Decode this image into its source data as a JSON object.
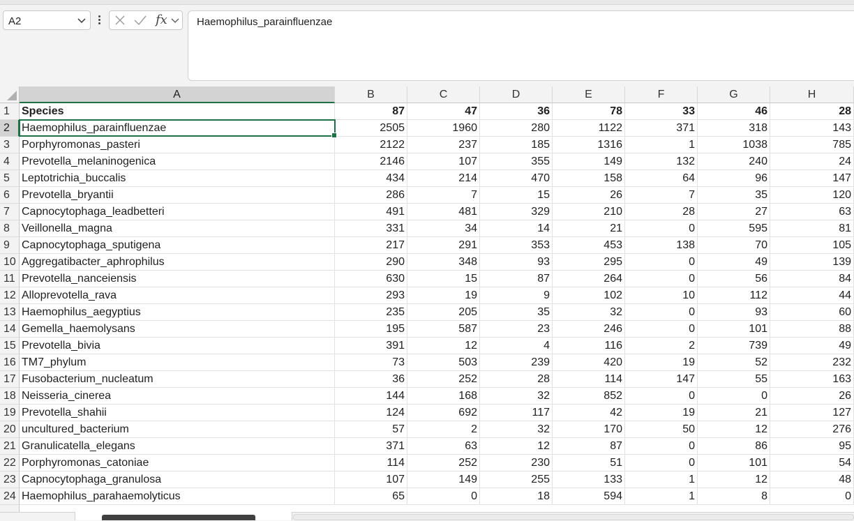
{
  "formula_bar": {
    "name_box": "A2",
    "formula": "Haemophilus_parainfluenzae"
  },
  "columns": [
    "A",
    "B",
    "C",
    "D",
    "E",
    "F",
    "G",
    "H"
  ],
  "rows": [
    {
      "n": "1",
      "cells": [
        "Species",
        "87",
        "47",
        "36",
        "78",
        "33",
        "46",
        "28"
      ]
    },
    {
      "n": "2",
      "cells": [
        "Haemophilus_parainfluenzae",
        "2505",
        "1960",
        "280",
        "1122",
        "371",
        "318",
        "143"
      ]
    },
    {
      "n": "3",
      "cells": [
        "Porphyromonas_pasteri",
        "2122",
        "237",
        "185",
        "1316",
        "1",
        "1038",
        "785"
      ]
    },
    {
      "n": "4",
      "cells": [
        "Prevotella_melaninogenica",
        "2146",
        "107",
        "355",
        "149",
        "132",
        "240",
        "24"
      ]
    },
    {
      "n": "5",
      "cells": [
        "Leptotrichia_buccalis",
        "434",
        "214",
        "470",
        "158",
        "64",
        "96",
        "147"
      ]
    },
    {
      "n": "6",
      "cells": [
        "Prevotella_bryantii",
        "286",
        "7",
        "15",
        "26",
        "7",
        "35",
        "120"
      ]
    },
    {
      "n": "7",
      "cells": [
        "Capnocytophaga_leadbetteri",
        "491",
        "481",
        "329",
        "210",
        "28",
        "27",
        "63"
      ]
    },
    {
      "n": "8",
      "cells": [
        "Veillonella_magna",
        "331",
        "34",
        "14",
        "21",
        "0",
        "595",
        "81"
      ]
    },
    {
      "n": "9",
      "cells": [
        "Capnocytophaga_sputigena",
        "217",
        "291",
        "353",
        "453",
        "138",
        "70",
        "105"
      ]
    },
    {
      "n": "10",
      "cells": [
        "Aggregatibacter_aphrophilus",
        "290",
        "348",
        "93",
        "295",
        "0",
        "49",
        "139"
      ]
    },
    {
      "n": "11",
      "cells": [
        "Prevotella_nanceiensis",
        "630",
        "15",
        "87",
        "264",
        "0",
        "56",
        "84"
      ]
    },
    {
      "n": "12",
      "cells": [
        "Alloprevotella_rava",
        "293",
        "19",
        "9",
        "102",
        "10",
        "112",
        "44"
      ]
    },
    {
      "n": "13",
      "cells": [
        "Haemophilus_aegyptius",
        "235",
        "205",
        "35",
        "32",
        "0",
        "93",
        "60"
      ]
    },
    {
      "n": "14",
      "cells": [
        "Gemella_haemolysans",
        "195",
        "587",
        "23",
        "246",
        "0",
        "101",
        "88"
      ]
    },
    {
      "n": "15",
      "cells": [
        "Prevotella_bivia",
        "391",
        "12",
        "4",
        "116",
        "2",
        "739",
        "49"
      ]
    },
    {
      "n": "16",
      "cells": [
        "TM7_phylum",
        "73",
        "503",
        "239",
        "420",
        "19",
        "52",
        "232"
      ]
    },
    {
      "n": "17",
      "cells": [
        "Fusobacterium_nucleatum",
        "36",
        "252",
        "28",
        "114",
        "147",
        "55",
        "163"
      ]
    },
    {
      "n": "18",
      "cells": [
        "Neisseria_cinerea",
        "144",
        "168",
        "32",
        "852",
        "0",
        "0",
        "26"
      ]
    },
    {
      "n": "19",
      "cells": [
        "Prevotella_shahii",
        "124",
        "692",
        "117",
        "42",
        "19",
        "21",
        "127"
      ]
    },
    {
      "n": "20",
      "cells": [
        "uncultured_bacterium",
        "57",
        "2",
        "32",
        "170",
        "50",
        "12",
        "276"
      ]
    },
    {
      "n": "21",
      "cells": [
        "Granulicatella_elegans",
        "371",
        "63",
        "12",
        "87",
        "0",
        "86",
        "95"
      ]
    },
    {
      "n": "22",
      "cells": [
        "Porphyromonas_catoniae",
        "114",
        "252",
        "230",
        "51",
        "0",
        "101",
        "54"
      ]
    },
    {
      "n": "23",
      "cells": [
        "Capnocytophaga_granulosa",
        "107",
        "149",
        "255",
        "133",
        "1",
        "12",
        "48"
      ]
    },
    {
      "n": "24",
      "cells": [
        "Haemophilus_parahaemolyticus",
        "65",
        "0",
        "18",
        "594",
        "1",
        "8",
        "0"
      ]
    }
  ],
  "selected_cell": "A2",
  "accent_color": "#1e7145"
}
